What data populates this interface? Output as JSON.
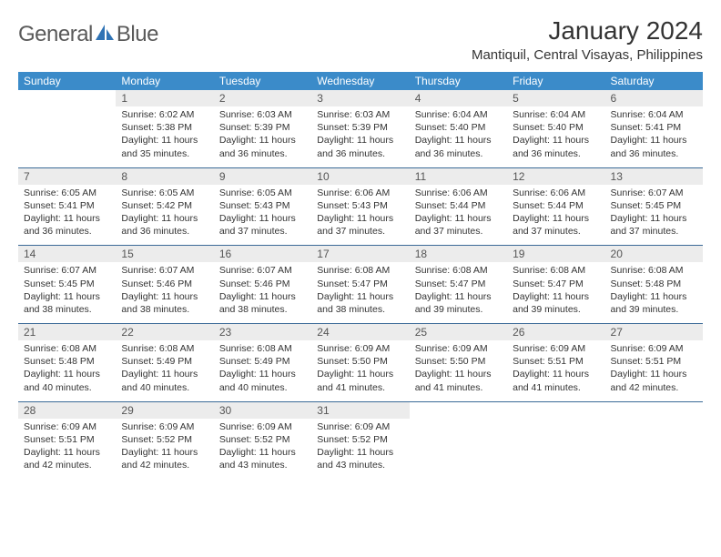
{
  "brand": {
    "word1": "General",
    "word2": "Blue"
  },
  "title": "January 2024",
  "location": "Mantiquil, Central Visayas, Philippines",
  "colors": {
    "header_bg": "#3b8bc9",
    "header_text": "#ffffff",
    "daynum_bg": "#ececec",
    "text": "#333333",
    "rule": "#3b6a97",
    "logo_gray": "#5a5a5a",
    "logo_blue": "#2f73b5"
  },
  "dow": [
    "Sunday",
    "Monday",
    "Tuesday",
    "Wednesday",
    "Thursday",
    "Friday",
    "Saturday"
  ],
  "weeks": [
    {
      "nums": [
        "",
        "1",
        "2",
        "3",
        "4",
        "5",
        "6"
      ],
      "cells": [
        null,
        {
          "sr": "Sunrise: 6:02 AM",
          "ss": "Sunset: 5:38 PM",
          "dl": "Daylight: 11 hours and 35 minutes."
        },
        {
          "sr": "Sunrise: 6:03 AM",
          "ss": "Sunset: 5:39 PM",
          "dl": "Daylight: 11 hours and 36 minutes."
        },
        {
          "sr": "Sunrise: 6:03 AM",
          "ss": "Sunset: 5:39 PM",
          "dl": "Daylight: 11 hours and 36 minutes."
        },
        {
          "sr": "Sunrise: 6:04 AM",
          "ss": "Sunset: 5:40 PM",
          "dl": "Daylight: 11 hours and 36 minutes."
        },
        {
          "sr": "Sunrise: 6:04 AM",
          "ss": "Sunset: 5:40 PM",
          "dl": "Daylight: 11 hours and 36 minutes."
        },
        {
          "sr": "Sunrise: 6:04 AM",
          "ss": "Sunset: 5:41 PM",
          "dl": "Daylight: 11 hours and 36 minutes."
        }
      ]
    },
    {
      "nums": [
        "7",
        "8",
        "9",
        "10",
        "11",
        "12",
        "13"
      ],
      "cells": [
        {
          "sr": "Sunrise: 6:05 AM",
          "ss": "Sunset: 5:41 PM",
          "dl": "Daylight: 11 hours and 36 minutes."
        },
        {
          "sr": "Sunrise: 6:05 AM",
          "ss": "Sunset: 5:42 PM",
          "dl": "Daylight: 11 hours and 36 minutes."
        },
        {
          "sr": "Sunrise: 6:05 AM",
          "ss": "Sunset: 5:43 PM",
          "dl": "Daylight: 11 hours and 37 minutes."
        },
        {
          "sr": "Sunrise: 6:06 AM",
          "ss": "Sunset: 5:43 PM",
          "dl": "Daylight: 11 hours and 37 minutes."
        },
        {
          "sr": "Sunrise: 6:06 AM",
          "ss": "Sunset: 5:44 PM",
          "dl": "Daylight: 11 hours and 37 minutes."
        },
        {
          "sr": "Sunrise: 6:06 AM",
          "ss": "Sunset: 5:44 PM",
          "dl": "Daylight: 11 hours and 37 minutes."
        },
        {
          "sr": "Sunrise: 6:07 AM",
          "ss": "Sunset: 5:45 PM",
          "dl": "Daylight: 11 hours and 37 minutes."
        }
      ]
    },
    {
      "nums": [
        "14",
        "15",
        "16",
        "17",
        "18",
        "19",
        "20"
      ],
      "cells": [
        {
          "sr": "Sunrise: 6:07 AM",
          "ss": "Sunset: 5:45 PM",
          "dl": "Daylight: 11 hours and 38 minutes."
        },
        {
          "sr": "Sunrise: 6:07 AM",
          "ss": "Sunset: 5:46 PM",
          "dl": "Daylight: 11 hours and 38 minutes."
        },
        {
          "sr": "Sunrise: 6:07 AM",
          "ss": "Sunset: 5:46 PM",
          "dl": "Daylight: 11 hours and 38 minutes."
        },
        {
          "sr": "Sunrise: 6:08 AM",
          "ss": "Sunset: 5:47 PM",
          "dl": "Daylight: 11 hours and 38 minutes."
        },
        {
          "sr": "Sunrise: 6:08 AM",
          "ss": "Sunset: 5:47 PM",
          "dl": "Daylight: 11 hours and 39 minutes."
        },
        {
          "sr": "Sunrise: 6:08 AM",
          "ss": "Sunset: 5:47 PM",
          "dl": "Daylight: 11 hours and 39 minutes."
        },
        {
          "sr": "Sunrise: 6:08 AM",
          "ss": "Sunset: 5:48 PM",
          "dl": "Daylight: 11 hours and 39 minutes."
        }
      ]
    },
    {
      "nums": [
        "21",
        "22",
        "23",
        "24",
        "25",
        "26",
        "27"
      ],
      "cells": [
        {
          "sr": "Sunrise: 6:08 AM",
          "ss": "Sunset: 5:48 PM",
          "dl": "Daylight: 11 hours and 40 minutes."
        },
        {
          "sr": "Sunrise: 6:08 AM",
          "ss": "Sunset: 5:49 PM",
          "dl": "Daylight: 11 hours and 40 minutes."
        },
        {
          "sr": "Sunrise: 6:08 AM",
          "ss": "Sunset: 5:49 PM",
          "dl": "Daylight: 11 hours and 40 minutes."
        },
        {
          "sr": "Sunrise: 6:09 AM",
          "ss": "Sunset: 5:50 PM",
          "dl": "Daylight: 11 hours and 41 minutes."
        },
        {
          "sr": "Sunrise: 6:09 AM",
          "ss": "Sunset: 5:50 PM",
          "dl": "Daylight: 11 hours and 41 minutes."
        },
        {
          "sr": "Sunrise: 6:09 AM",
          "ss": "Sunset: 5:51 PM",
          "dl": "Daylight: 11 hours and 41 minutes."
        },
        {
          "sr": "Sunrise: 6:09 AM",
          "ss": "Sunset: 5:51 PM",
          "dl": "Daylight: 11 hours and 42 minutes."
        }
      ]
    },
    {
      "nums": [
        "28",
        "29",
        "30",
        "31",
        "",
        "",
        ""
      ],
      "cells": [
        {
          "sr": "Sunrise: 6:09 AM",
          "ss": "Sunset: 5:51 PM",
          "dl": "Daylight: 11 hours and 42 minutes."
        },
        {
          "sr": "Sunrise: 6:09 AM",
          "ss": "Sunset: 5:52 PM",
          "dl": "Daylight: 11 hours and 42 minutes."
        },
        {
          "sr": "Sunrise: 6:09 AM",
          "ss": "Sunset: 5:52 PM",
          "dl": "Daylight: 11 hours and 43 minutes."
        },
        {
          "sr": "Sunrise: 6:09 AM",
          "ss": "Sunset: 5:52 PM",
          "dl": "Daylight: 11 hours and 43 minutes."
        },
        null,
        null,
        null
      ]
    }
  ]
}
